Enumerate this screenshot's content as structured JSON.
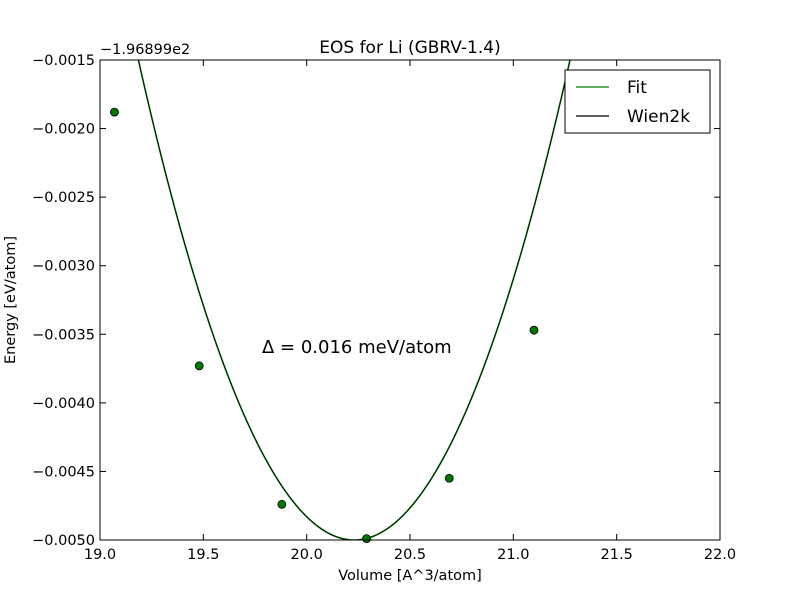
{
  "chart_data": {
    "type": "line",
    "title": "EOS for Li (GBRV-1.4)",
    "xlabel": "Volume [A^3/atom]",
    "ylabel": "Energy [eV/atom]",
    "offset_label": "−1.96899e2",
    "annotation": "Δ = 0.016 meV/atom",
    "xlim": [
      19.0,
      22.0
    ],
    "ylim": [
      -0.005,
      -0.0015
    ],
    "x_ticks": [
      19.0,
      19.5,
      20.0,
      20.5,
      21.0,
      21.5,
      22.0
    ],
    "x_tick_labels": [
      "19.0",
      "19.5",
      "20.0",
      "20.5",
      "21.0",
      "21.5",
      "22.0"
    ],
    "y_ticks": [
      -0.005,
      -0.0045,
      -0.004,
      -0.0035,
      -0.003,
      -0.0025,
      -0.002,
      -0.0015
    ],
    "y_tick_labels": [
      "−0.0050",
      "−0.0045",
      "−0.0040",
      "−0.0035",
      "−0.0030",
      "−0.0025",
      "−0.0020",
      "−0.0015"
    ],
    "legend_position": "top-right",
    "grid": false,
    "eos": {
      "e0": -0.005,
      "v0": 20.23,
      "curvature": 0.00321
    },
    "points": {
      "x": [
        19.07,
        19.48,
        19.88,
        20.29,
        20.69,
        21.1
      ],
      "y": [
        -0.00188,
        -0.00373,
        -0.00474,
        -0.00499,
        -0.00455,
        -0.00347
      ],
      "color": "#007700"
    },
    "series": [
      {
        "name": "Fit",
        "color": "#008000"
      },
      {
        "name": "Wien2k",
        "color": "#000000"
      }
    ]
  }
}
